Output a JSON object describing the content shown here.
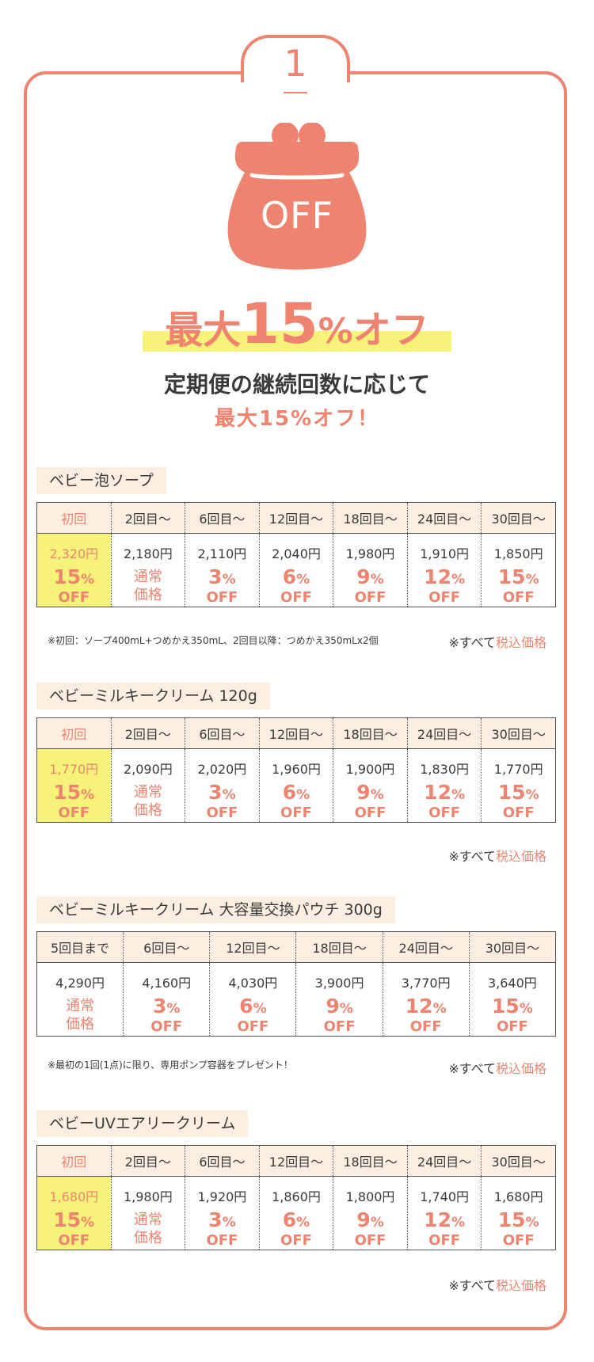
{
  "step": {
    "number": "1"
  },
  "hero": {
    "icon": "purse-icon",
    "icon_label": "OFF",
    "headline_pre": "最大",
    "headline_num": "15",
    "headline_pct": "%",
    "headline_post": "オフ",
    "subline1": "定期便の継続回数に応じて",
    "subline2": "最大15%オフ！"
  },
  "colors": {
    "accent": "#ee8470",
    "highlight": "#f6f27a",
    "label_bg": "#fdeee2"
  },
  "tax_note": {
    "prefix": "※すべて",
    "accent": "税込価格"
  },
  "products": [
    {
      "name": "ベビー泡ソープ",
      "headers": [
        "初回",
        "2回目〜",
        "6回目〜",
        "12回目〜",
        "18回目〜",
        "24回目〜",
        "30回目〜"
      ],
      "prices": [
        "2,320円",
        "2,180円",
        "2,110円",
        "2,040円",
        "1,980円",
        "1,910円",
        "1,850円"
      ],
      "discounts": [
        "15",
        "通常価格",
        "3",
        "6",
        "9",
        "12",
        "15"
      ],
      "note": "※初回：ソープ400mL+つめかえ350mL、2回目以降：つめかえ350mLx2個"
    },
    {
      "name": "ベビーミルキークリーム 120g",
      "headers": [
        "初回",
        "2回目〜",
        "6回目〜",
        "12回目〜",
        "18回目〜",
        "24回目〜",
        "30回目〜"
      ],
      "prices": [
        "1,770円",
        "2,090円",
        "2,020円",
        "1,960円",
        "1,900円",
        "1,830円",
        "1,770円"
      ],
      "discounts": [
        "15",
        "通常価格",
        "3",
        "6",
        "9",
        "12",
        "15"
      ],
      "note": ""
    },
    {
      "name": "ベビーミルキークリーム 大容量交換パウチ 300g",
      "headers": [
        "5回目まで",
        "6回目〜",
        "12回目〜",
        "18回目〜",
        "24回目〜",
        "30回目〜"
      ],
      "prices": [
        "4,290円",
        "4,160円",
        "4,030円",
        "3,900円",
        "3,770円",
        "3,640円"
      ],
      "discounts": [
        "通常価格",
        "3",
        "6",
        "9",
        "12",
        "15"
      ],
      "note": "※最初の1回(1点)に限り、専用ポンプ容器をプレゼント！"
    },
    {
      "name": "ベビーUVエアリークリーム",
      "headers": [
        "初回",
        "2回目〜",
        "6回目〜",
        "12回目〜",
        "18回目〜",
        "24回目〜",
        "30回目〜"
      ],
      "prices": [
        "1,680円",
        "1,980円",
        "1,920円",
        "1,860円",
        "1,800円",
        "1,740円",
        "1,680円"
      ],
      "discounts": [
        "15",
        "通常価格",
        "3",
        "6",
        "9",
        "12",
        "15"
      ],
      "note": ""
    }
  ],
  "labels": {
    "off": "OFF",
    "pct": "%",
    "regular_line1": "通常",
    "regular_line2": "価格"
  }
}
